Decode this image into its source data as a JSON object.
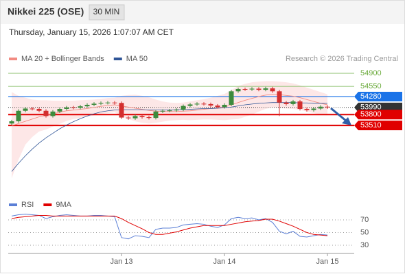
{
  "header": {
    "title": "Nikkei 225 (OSE)",
    "interval": "30 MIN",
    "datetime": "Thursday, January 15, 2026 1:07:07 AM CET",
    "credit": "Research © 2026 Trading Central"
  },
  "chart_data": [
    {
      "type": "candlestick",
      "up_color": "#3d8b3d",
      "down_color": "#d32f2f",
      "open": [
        53560,
        53620,
        53900,
        53960,
        53950,
        53900,
        53760,
        53880,
        53950,
        53990,
        53980,
        54020,
        54060,
        54090,
        54110,
        54120,
        54110,
        53720,
        53700,
        53760,
        53730,
        53710,
        53880,
        53900,
        53910,
        53930,
        54030,
        54070,
        54090,
        54080,
        54040,
        54000,
        54060,
        54420,
        54480,
        54470,
        54490,
        54460,
        54500,
        54420,
        54120,
        54080,
        54150,
        53950,
        53920,
        53960,
        54010
      ],
      "high": [
        53660,
        53940,
        54000,
        54000,
        53990,
        53940,
        53920,
        53990,
        54030,
        54030,
        54060,
        54100,
        54130,
        54150,
        54160,
        54160,
        54150,
        53760,
        53800,
        53800,
        53770,
        53920,
        53940,
        53950,
        53970,
        54070,
        54110,
        54130,
        54130,
        54120,
        54080,
        54100,
        54460,
        54520,
        54520,
        54530,
        54530,
        54540,
        54540,
        54460,
        54160,
        54190,
        54190,
        53990,
        54000,
        54050,
        54050
      ],
      "low": [
        53520,
        53580,
        53860,
        53910,
        53860,
        53720,
        53720,
        53840,
        53910,
        53940,
        53940,
        53980,
        54020,
        54050,
        54070,
        54070,
        53680,
        53660,
        53660,
        53690,
        53670,
        53670,
        53840,
        53860,
        53870,
        53890,
        53990,
        54030,
        54040,
        54000,
        53960,
        53960,
        54020,
        54380,
        54430,
        54430,
        54420,
        54420,
        54380,
        53760,
        54040,
        54040,
        53910,
        53880,
        53880,
        53920,
        53950
      ],
      "close": [
        53620,
        53900,
        53960,
        53950,
        53900,
        53760,
        53880,
        53950,
        53990,
        53980,
        54020,
        54060,
        54090,
        54110,
        54120,
        54110,
        53720,
        53700,
        53760,
        53730,
        53710,
        53880,
        53900,
        53910,
        53930,
        54030,
        54070,
        54090,
        54080,
        54040,
        54000,
        54060,
        54420,
        54480,
        54470,
        54490,
        54460,
        54500,
        54420,
        54120,
        54080,
        54150,
        53950,
        53920,
        53960,
        54010,
        53990
      ],
      "series": [
        {
          "name": "MA 20 + Bollinger Bands",
          "color": "#f28b82",
          "values": [
            53500,
            53560,
            53620,
            53680,
            53740,
            53780,
            53820,
            53860,
            53900,
            53920,
            53940,
            53960,
            53990,
            54020,
            54040,
            54060,
            54030,
            54000,
            53970,
            53940,
            53910,
            53890,
            53880,
            53880,
            53880,
            53890,
            53900,
            53920,
            53940,
            53960,
            53980,
            54000,
            54060,
            54120,
            54180,
            54230,
            54280,
            54320,
            54340,
            54330,
            54310,
            54290,
            54250,
            54200,
            54150,
            54100,
            54060
          ],
          "upper": [
            54400,
            54300,
            54250,
            54200,
            54180,
            54180,
            54170,
            54170,
            54170,
            54170,
            54180,
            54190,
            54200,
            54220,
            54240,
            54250,
            54300,
            54320,
            54330,
            54300,
            54260,
            54200,
            54150,
            54120,
            54110,
            54120,
            54150,
            54180,
            54210,
            54250,
            54300,
            54350,
            54450,
            54560,
            54620,
            54660,
            54680,
            54690,
            54690,
            54680,
            54660,
            54630,
            54580,
            54520,
            54460,
            54400,
            54340
          ],
          "lower": [
            52100,
            52600,
            53000,
            53200,
            53350,
            53400,
            53480,
            53550,
            53630,
            53680,
            53710,
            53740,
            53780,
            53820,
            53840,
            53860,
            53760,
            53680,
            53620,
            53580,
            53560,
            53580,
            53610,
            53640,
            53650,
            53660,
            53650,
            53660,
            53670,
            53670,
            53660,
            53650,
            53670,
            53680,
            53740,
            53800,
            53880,
            53950,
            53990,
            53980,
            53960,
            53950,
            53920,
            53880,
            53840,
            53800,
            53780
          ]
        },
        {
          "name": "MA 50",
          "color": "#2f5597",
          "values": [
            52280,
            52500,
            52700,
            52880,
            53040,
            53180,
            53300,
            53420,
            53520,
            53610,
            53690,
            53760,
            53820,
            53870,
            53900,
            53920,
            53930,
            53930,
            53930,
            53930,
            53920,
            53920,
            53920,
            53920,
            53930,
            53930,
            53940,
            53950,
            53960,
            53960,
            53970,
            53980,
            54000,
            54030,
            54060,
            54080,
            54100,
            54110,
            54120,
            54120,
            54120,
            54120,
            54110,
            54110,
            54100,
            54100,
            54100
          ]
        }
      ],
      "levels": [
        {
          "value": 54900,
          "color": "#8dc26f"
        },
        {
          "value": 54550,
          "color": "#8dc26f"
        },
        {
          "value": 54280,
          "color": "#1a73e8"
        },
        {
          "value": 53990,
          "color": "#333333"
        },
        {
          "value": 53800,
          "color": "#e00000"
        },
        {
          "value": 53510,
          "color": "#e00000"
        }
      ],
      "ylim": [
        51830,
        55120
      ],
      "xlim": [
        -0.5,
        49.8
      ],
      "xticks": [
        {
          "value": 16,
          "label": "Jan 13"
        },
        {
          "value": 31,
          "label": "Jan 14"
        },
        {
          "value": 46,
          "label": "Jan 15"
        }
      ]
    },
    {
      "type": "line",
      "series": [
        {
          "name": "RSI",
          "color": "#5b7fd6",
          "values": [
            76,
            78,
            79,
            78,
            77,
            72,
            75,
            77,
            78,
            77,
            76,
            76,
            77,
            77,
            76,
            75,
            42,
            40,
            45,
            44,
            42,
            55,
            57,
            57,
            58,
            62,
            63,
            64,
            63,
            60,
            58,
            62,
            72,
            74,
            72,
            73,
            70,
            72,
            66,
            52,
            48,
            52,
            44,
            43,
            45,
            47,
            46
          ]
        },
        {
          "name": "9MA",
          "color": "#e00000",
          "values": [
            72,
            74,
            75,
            76,
            77,
            77,
            76,
            76,
            76,
            76,
            76,
            76,
            76,
            76,
            76,
            76,
            72,
            66,
            61,
            56,
            50,
            47,
            47,
            49,
            51,
            54,
            57,
            59,
            61,
            61,
            61,
            61,
            63,
            65,
            67,
            68,
            69,
            71,
            71,
            68,
            64,
            60,
            55,
            50,
            47,
            46,
            45
          ]
        }
      ],
      "ylim": [
        17,
        84
      ],
      "yticks": [
        30,
        50,
        70
      ],
      "xlim": [
        -0.5,
        49.8
      ]
    }
  ]
}
